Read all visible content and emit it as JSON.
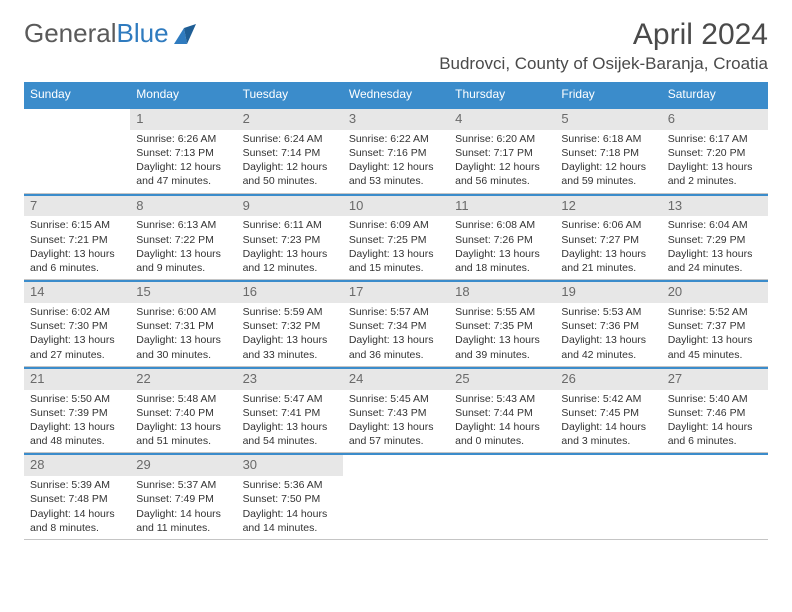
{
  "logo": {
    "text1": "General",
    "text2": "Blue"
  },
  "title": "April 2024",
  "location": "Budrovci, County of Osijek-Baranja, Croatia",
  "colors": {
    "header_bg": "#3b8ccb",
    "header_fg": "#ffffff",
    "daynum_bg": "#e7e7e7",
    "rule": "#3b8ccb"
  },
  "weekdays": [
    "Sunday",
    "Monday",
    "Tuesday",
    "Wednesday",
    "Thursday",
    "Friday",
    "Saturday"
  ],
  "weeks": [
    [
      {
        "n": "",
        "sr": "",
        "ss": "",
        "dl": ""
      },
      {
        "n": "1",
        "sr": "Sunrise: 6:26 AM",
        "ss": "Sunset: 7:13 PM",
        "dl": "Daylight: 12 hours and 47 minutes."
      },
      {
        "n": "2",
        "sr": "Sunrise: 6:24 AM",
        "ss": "Sunset: 7:14 PM",
        "dl": "Daylight: 12 hours and 50 minutes."
      },
      {
        "n": "3",
        "sr": "Sunrise: 6:22 AM",
        "ss": "Sunset: 7:16 PM",
        "dl": "Daylight: 12 hours and 53 minutes."
      },
      {
        "n": "4",
        "sr": "Sunrise: 6:20 AM",
        "ss": "Sunset: 7:17 PM",
        "dl": "Daylight: 12 hours and 56 minutes."
      },
      {
        "n": "5",
        "sr": "Sunrise: 6:18 AM",
        "ss": "Sunset: 7:18 PM",
        "dl": "Daylight: 12 hours and 59 minutes."
      },
      {
        "n": "6",
        "sr": "Sunrise: 6:17 AM",
        "ss": "Sunset: 7:20 PM",
        "dl": "Daylight: 13 hours and 2 minutes."
      }
    ],
    [
      {
        "n": "7",
        "sr": "Sunrise: 6:15 AM",
        "ss": "Sunset: 7:21 PM",
        "dl": "Daylight: 13 hours and 6 minutes."
      },
      {
        "n": "8",
        "sr": "Sunrise: 6:13 AM",
        "ss": "Sunset: 7:22 PM",
        "dl": "Daylight: 13 hours and 9 minutes."
      },
      {
        "n": "9",
        "sr": "Sunrise: 6:11 AM",
        "ss": "Sunset: 7:23 PM",
        "dl": "Daylight: 13 hours and 12 minutes."
      },
      {
        "n": "10",
        "sr": "Sunrise: 6:09 AM",
        "ss": "Sunset: 7:25 PM",
        "dl": "Daylight: 13 hours and 15 minutes."
      },
      {
        "n": "11",
        "sr": "Sunrise: 6:08 AM",
        "ss": "Sunset: 7:26 PM",
        "dl": "Daylight: 13 hours and 18 minutes."
      },
      {
        "n": "12",
        "sr": "Sunrise: 6:06 AM",
        "ss": "Sunset: 7:27 PM",
        "dl": "Daylight: 13 hours and 21 minutes."
      },
      {
        "n": "13",
        "sr": "Sunrise: 6:04 AM",
        "ss": "Sunset: 7:29 PM",
        "dl": "Daylight: 13 hours and 24 minutes."
      }
    ],
    [
      {
        "n": "14",
        "sr": "Sunrise: 6:02 AM",
        "ss": "Sunset: 7:30 PM",
        "dl": "Daylight: 13 hours and 27 minutes."
      },
      {
        "n": "15",
        "sr": "Sunrise: 6:00 AM",
        "ss": "Sunset: 7:31 PM",
        "dl": "Daylight: 13 hours and 30 minutes."
      },
      {
        "n": "16",
        "sr": "Sunrise: 5:59 AM",
        "ss": "Sunset: 7:32 PM",
        "dl": "Daylight: 13 hours and 33 minutes."
      },
      {
        "n": "17",
        "sr": "Sunrise: 5:57 AM",
        "ss": "Sunset: 7:34 PM",
        "dl": "Daylight: 13 hours and 36 minutes."
      },
      {
        "n": "18",
        "sr": "Sunrise: 5:55 AM",
        "ss": "Sunset: 7:35 PM",
        "dl": "Daylight: 13 hours and 39 minutes."
      },
      {
        "n": "19",
        "sr": "Sunrise: 5:53 AM",
        "ss": "Sunset: 7:36 PM",
        "dl": "Daylight: 13 hours and 42 minutes."
      },
      {
        "n": "20",
        "sr": "Sunrise: 5:52 AM",
        "ss": "Sunset: 7:37 PM",
        "dl": "Daylight: 13 hours and 45 minutes."
      }
    ],
    [
      {
        "n": "21",
        "sr": "Sunrise: 5:50 AM",
        "ss": "Sunset: 7:39 PM",
        "dl": "Daylight: 13 hours and 48 minutes."
      },
      {
        "n": "22",
        "sr": "Sunrise: 5:48 AM",
        "ss": "Sunset: 7:40 PM",
        "dl": "Daylight: 13 hours and 51 minutes."
      },
      {
        "n": "23",
        "sr": "Sunrise: 5:47 AM",
        "ss": "Sunset: 7:41 PM",
        "dl": "Daylight: 13 hours and 54 minutes."
      },
      {
        "n": "24",
        "sr": "Sunrise: 5:45 AM",
        "ss": "Sunset: 7:43 PM",
        "dl": "Daylight: 13 hours and 57 minutes."
      },
      {
        "n": "25",
        "sr": "Sunrise: 5:43 AM",
        "ss": "Sunset: 7:44 PM",
        "dl": "Daylight: 14 hours and 0 minutes."
      },
      {
        "n": "26",
        "sr": "Sunrise: 5:42 AM",
        "ss": "Sunset: 7:45 PM",
        "dl": "Daylight: 14 hours and 3 minutes."
      },
      {
        "n": "27",
        "sr": "Sunrise: 5:40 AM",
        "ss": "Sunset: 7:46 PM",
        "dl": "Daylight: 14 hours and 6 minutes."
      }
    ],
    [
      {
        "n": "28",
        "sr": "Sunrise: 5:39 AM",
        "ss": "Sunset: 7:48 PM",
        "dl": "Daylight: 14 hours and 8 minutes."
      },
      {
        "n": "29",
        "sr": "Sunrise: 5:37 AM",
        "ss": "Sunset: 7:49 PM",
        "dl": "Daylight: 14 hours and 11 minutes."
      },
      {
        "n": "30",
        "sr": "Sunrise: 5:36 AM",
        "ss": "Sunset: 7:50 PM",
        "dl": "Daylight: 14 hours and 14 minutes."
      },
      {
        "n": "",
        "sr": "",
        "ss": "",
        "dl": ""
      },
      {
        "n": "",
        "sr": "",
        "ss": "",
        "dl": ""
      },
      {
        "n": "",
        "sr": "",
        "ss": "",
        "dl": ""
      },
      {
        "n": "",
        "sr": "",
        "ss": "",
        "dl": ""
      }
    ]
  ]
}
